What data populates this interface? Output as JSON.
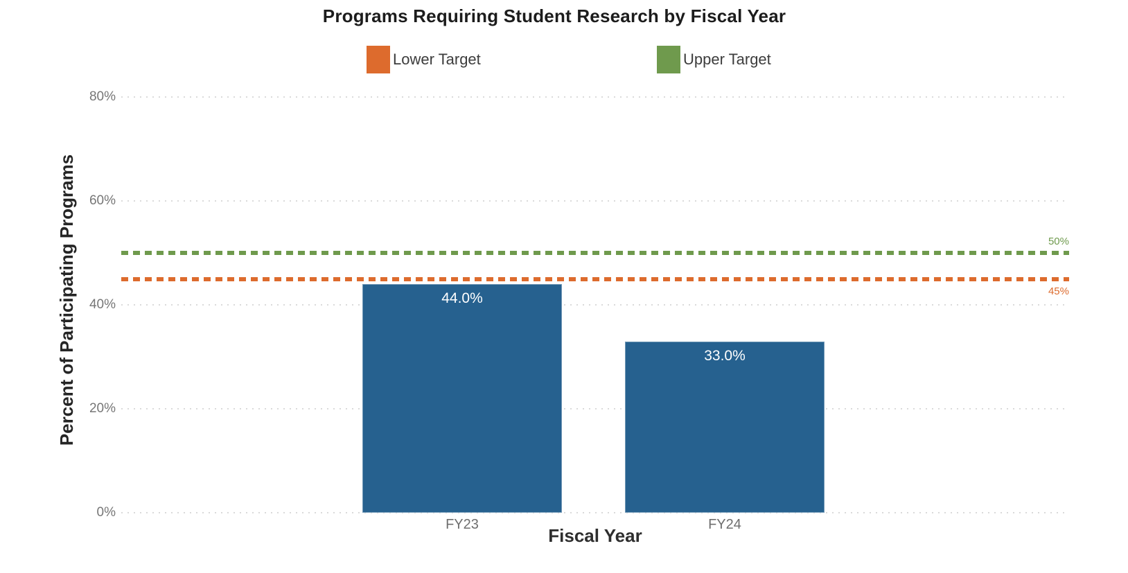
{
  "chart_data": {
    "type": "bar",
    "title": "Programs Requiring Student Research by Fiscal Year",
    "xlabel": "Fiscal Year",
    "ylabel": "Percent of Participating Programs",
    "categories": [
      "FY23",
      "FY24"
    ],
    "values": [
      44.0,
      33.0
    ],
    "value_labels": [
      "44.0%",
      "33.0%"
    ],
    "bar_color": "#26618F",
    "ylim": [
      0,
      80
    ],
    "yticks": [
      0,
      20,
      40,
      60,
      80
    ],
    "ytick_labels": [
      "0%",
      "20%",
      "40%",
      "60%",
      "80%"
    ],
    "grid": true,
    "legend_position": "top",
    "targets": [
      {
        "name": "Lower Target",
        "value": 45,
        "label": "45%",
        "color": "#DD6B2D",
        "label_position": "below"
      },
      {
        "name": "Upper Target",
        "value": 50,
        "label": "50%",
        "color": "#6F9A4D",
        "label_position": "above"
      }
    ]
  }
}
